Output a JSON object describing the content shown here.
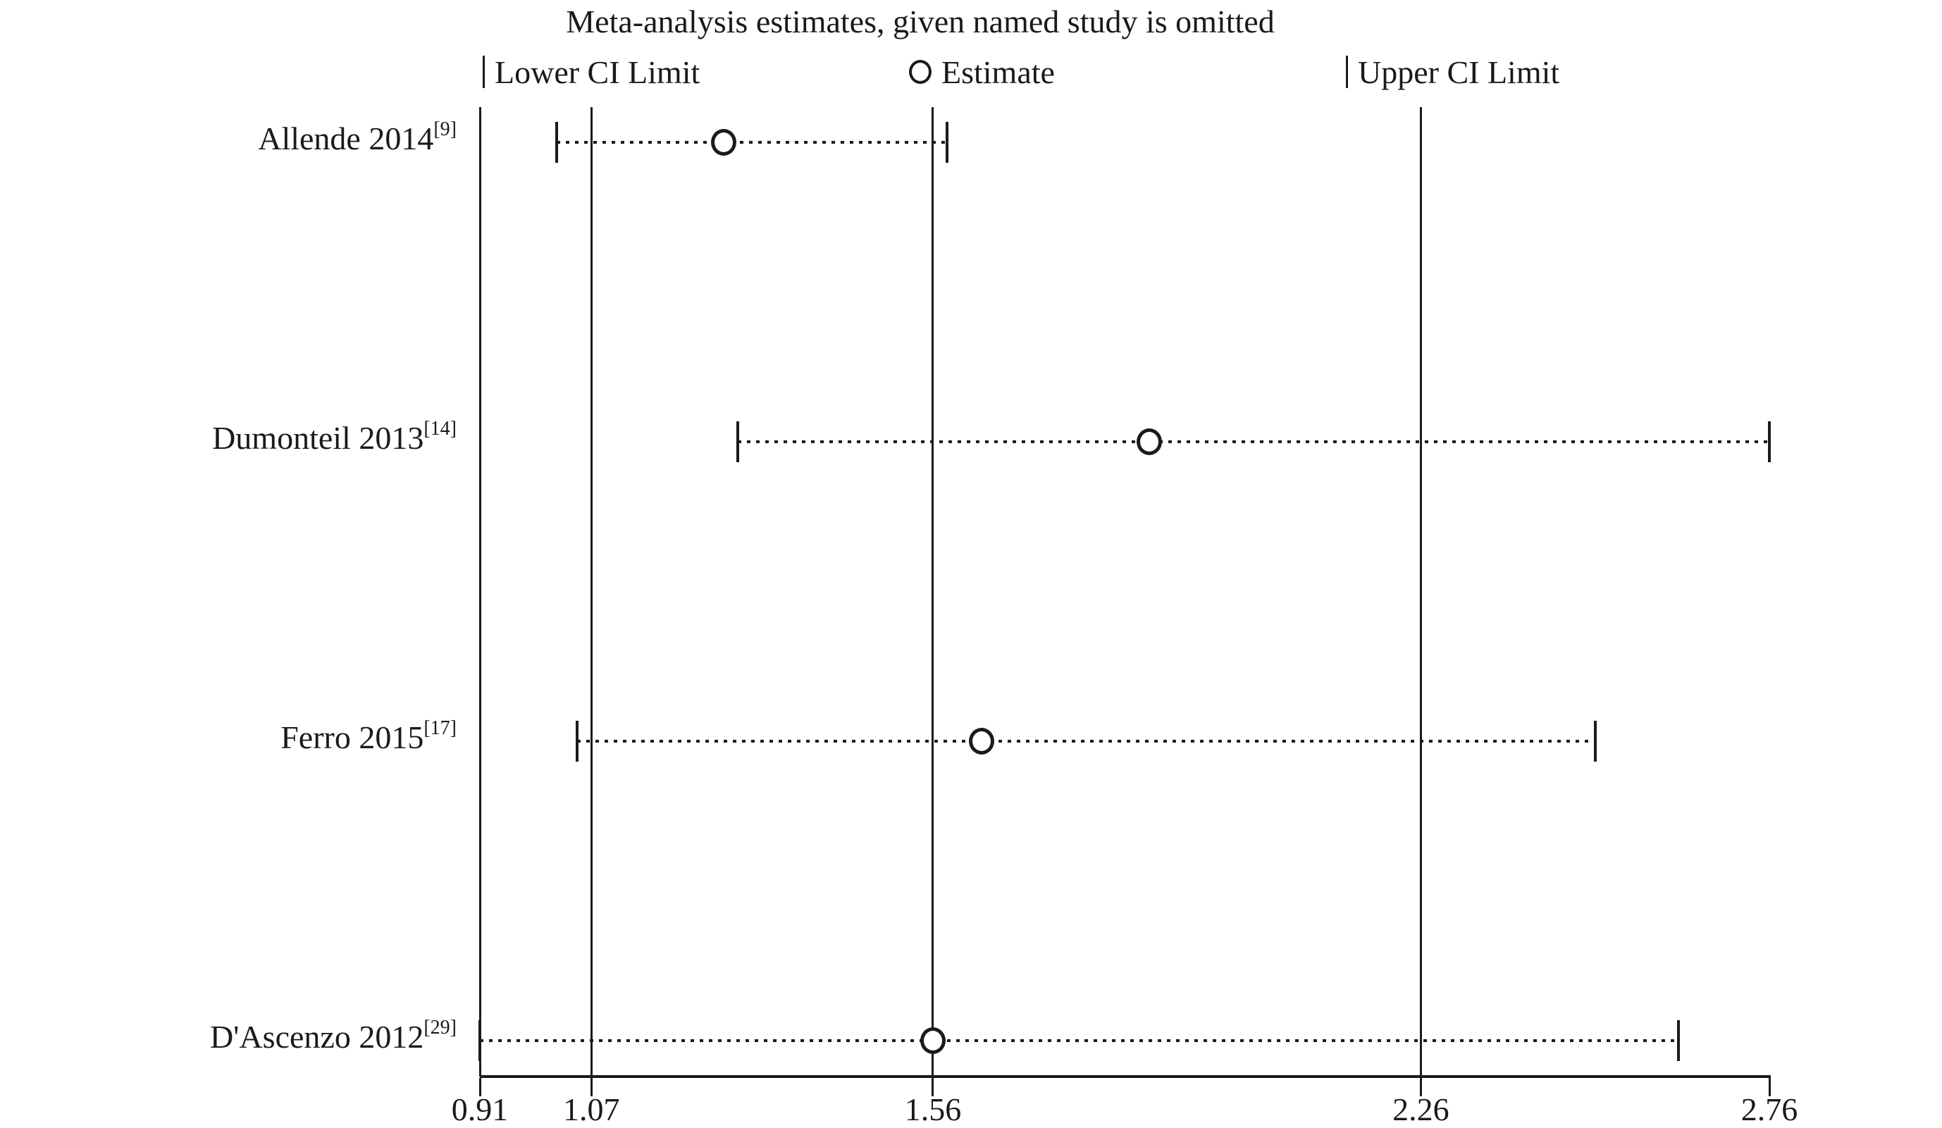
{
  "title": "Meta-analysis estimates, given named study is omitted",
  "legend": {
    "lower_label": "Lower CI Limit",
    "estimate_label": "Estimate",
    "upper_label": "Upper CI Limit"
  },
  "colors": {
    "ink": "#1a1a1a",
    "background": "#ffffff"
  },
  "chart_data": {
    "type": "scatter",
    "subtype": "leave-one-out-forest-plot",
    "title": "Meta-analysis estimates, given named study is omitted",
    "xlabel": "",
    "ylabel": "",
    "x_axis": {
      "min": 0.91,
      "max": 2.76,
      "ticks": [
        0.91,
        1.07,
        1.56,
        2.26,
        2.76
      ]
    },
    "reference_lines": [
      0.91,
      1.07,
      1.56,
      2.26
    ],
    "legend_entries": [
      "Lower CI Limit",
      "Estimate",
      "Upper CI Limit"
    ],
    "studies": [
      {
        "label": "Allende 2014",
        "ref": "[9]",
        "lower": 1.02,
        "estimate": 1.26,
        "upper": 1.58
      },
      {
        "label": "Dumonteil 2013",
        "ref": "[14]",
        "lower": 1.28,
        "estimate": 1.87,
        "upper": 2.76
      },
      {
        "label": "Ferro 2015",
        "ref": "[17]",
        "lower": 1.05,
        "estimate": 1.63,
        "upper": 2.51
      },
      {
        "label": "D'Ascenzo 2012",
        "ref": "[29]",
        "lower": 0.91,
        "estimate": 1.56,
        "upper": 2.63
      }
    ]
  }
}
